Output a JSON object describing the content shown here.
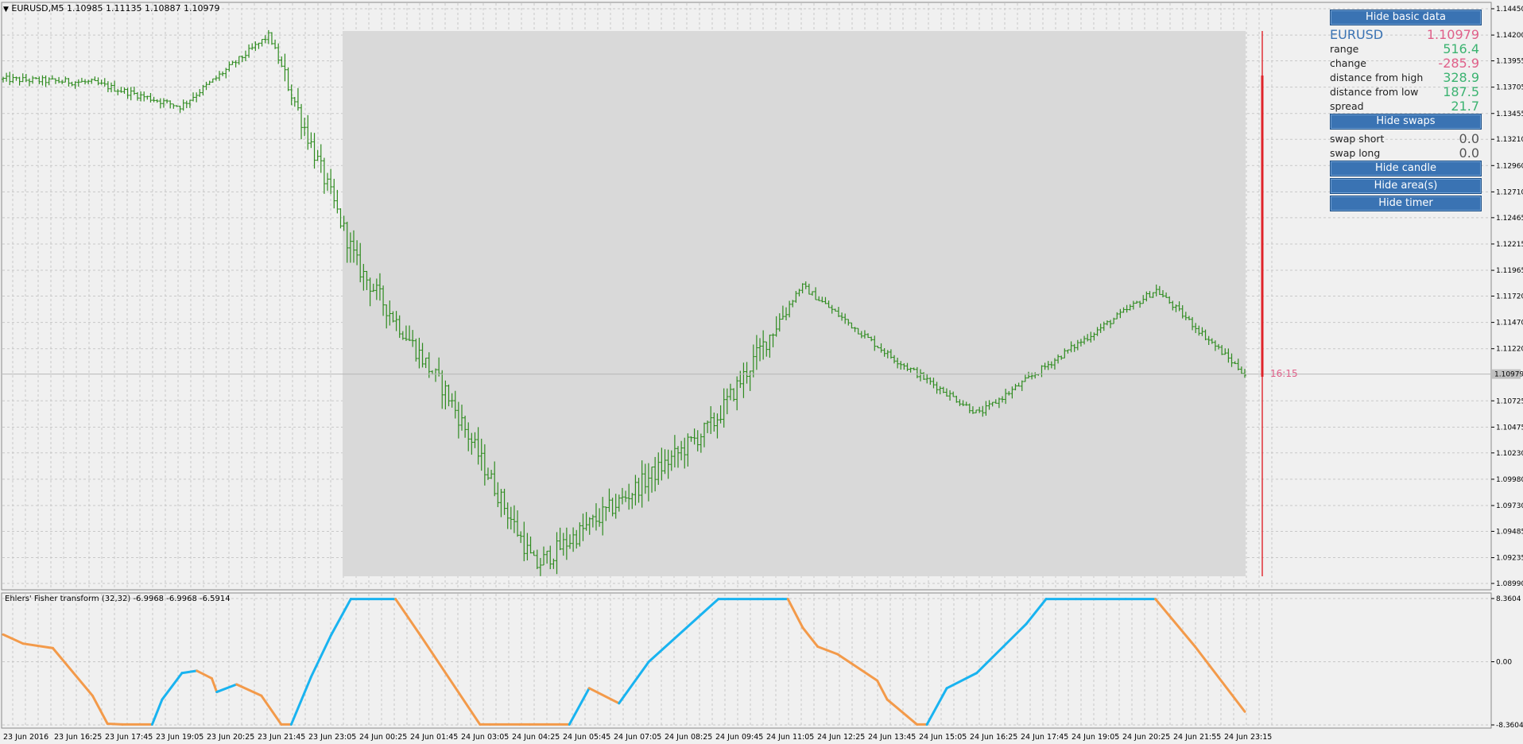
{
  "chart_title": "EURUSD,M5  1.10985 1.11135 1.10887 1.10979",
  "indicator_title": "Ehlers' Fisher transform (32,32) -6.9968 -6.9968 -6.5914",
  "timer_label": "16:15",
  "current_price_label": "1.10979",
  "colors": {
    "bull": "#2e8b1f",
    "fisher_up": "#19b3f0",
    "fisher_down": "#f39a4a",
    "accent_red": "#e0232a",
    "button_bg": "#3a73b3",
    "up_value": "#3cb371",
    "down_value": "#e0608a"
  },
  "panel": {
    "hide_basic_data": "Hide basic data",
    "symbol": "EURUSD",
    "symbol_price": "1.10979",
    "rows": [
      {
        "label": "range",
        "value": "516.4"
      },
      {
        "label": "change",
        "value": "-285.9"
      },
      {
        "label": "distance from high",
        "value": "328.9"
      },
      {
        "label": "distance from low",
        "value": "187.5"
      },
      {
        "label": "spread",
        "value": "21.7"
      }
    ],
    "hide_swaps": "Hide swaps",
    "swaps": [
      {
        "label": "swap short",
        "value": "0.0"
      },
      {
        "label": "swap long",
        "value": "0.0"
      }
    ],
    "hide_candle": "Hide candle",
    "hide_areas": "Hide area(s)",
    "hide_timer": "Hide timer"
  },
  "chart_data": [
    {
      "type": "line",
      "series": [
        {
          "values": [
            1.1378,
            1.1375,
            1.1352,
            1.142,
            1.12,
            1.108,
            1.0915,
            1.098,
            1.105,
            1.1182,
            1.1115,
            1.106,
            1.112,
            1.1178,
            1.1098
          ]
        }
      ],
      "x_tick_labels": [
        "23 Jun 2016",
        "23 Jun 16:25",
        "23 Jun 17:45",
        "23 Jun 19:05",
        "23 Jun 20:25",
        "23 Jun 21:45",
        "23 Jun 23:05",
        "24 Jun 00:25",
        "24 Jun 01:45",
        "24 Jun 03:05",
        "24 Jun 04:25",
        "24 Jun 05:45",
        "24 Jun 07:05",
        "24 Jun 08:25",
        "24 Jun 09:45",
        "24 Jun 11:05",
        "24 Jun 12:25",
        "24 Jun 13:45",
        "24 Jun 15:05",
        "24 Jun 16:25",
        "24 Jun 17:45",
        "24 Jun 19:05",
        "24 Jun 20:25",
        "24 Jun 21:55",
        "24 Jun 23:15"
      ],
      "y_tick_labels": [
        "1.14450",
        "1.14200",
        "1.13955",
        "1.13705",
        "1.13455",
        "1.13210",
        "1.12960",
        "1.12710",
        "1.12465",
        "1.12215",
        "1.11965",
        "1.11720",
        "1.11470",
        "1.11220",
        "1.10725",
        "1.10475",
        "1.10230",
        "1.09980",
        "1.09730",
        "1.09485",
        "1.09235",
        "1.08990"
      ],
      "ylim": [
        1.0899,
        1.1445
      ],
      "current_price": 1.10979
    },
    {
      "type": "line",
      "name": "Ehlers' Fisher transform (32,32)",
      "x": [
        0,
        2,
        5,
        9,
        10.5,
        12,
        15,
        16,
        18,
        19.5,
        21,
        21.5,
        23.5,
        26,
        28,
        29,
        31,
        33,
        35,
        39.5,
        42,
        48,
        49,
        52,
        53,
        57,
        59,
        62,
        65,
        72,
        73,
        76,
        78.5,
        79,
        80.5,
        82,
        84,
        88,
        89,
        92,
        93,
        95,
        98,
        103,
        105,
        108,
        110,
        113,
        116,
        120,
        125
      ],
      "values": [
        3.6,
        2.4,
        1.8,
        -4.5,
        -8.2,
        -8.3,
        -8.3,
        -5.0,
        -1.5,
        -1.2,
        -2.2,
        -4.0,
        -3.0,
        -4.5,
        -8.3,
        -8.3,
        -2.0,
        3.5,
        8.3,
        8.3,
        3.5,
        -8.3,
        -8.3,
        -8.3,
        -8.3,
        -8.3,
        -3.5,
        -5.5,
        0.0,
        8.3,
        8.3,
        8.3,
        8.3,
        8.3,
        4.5,
        2.0,
        1.0,
        -2.5,
        -5.0,
        -8.3,
        -8.3,
        -3.5,
        -1.5,
        5.0,
        8.3,
        8.3,
        8.3,
        8.3,
        8.3,
        2.0,
        -6.6
      ],
      "y_tick_labels": [
        "8.3604",
        "0.00",
        "-8.3604"
      ],
      "ylim": [
        -8.3604,
        8.3604
      ]
    }
  ]
}
